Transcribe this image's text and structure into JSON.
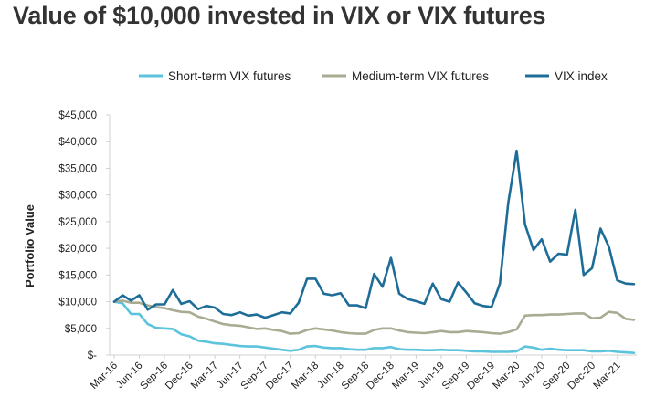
{
  "chart_data": {
    "type": "line",
    "title": "Value of $10,000 invested in VIX or VIX futures",
    "xlabel": "",
    "ylabel": "Portfolio Value",
    "ylim": [
      0,
      45000
    ],
    "yticks": [
      0,
      5000,
      10000,
      15000,
      20000,
      25000,
      30000,
      35000,
      40000,
      45000
    ],
    "ytick_labels": [
      "$-",
      "$5,000",
      "$10,000",
      "$15,000",
      "$20,000",
      "$25,000",
      "$30,000",
      "$35,000",
      "$40,000",
      "$45,000"
    ],
    "xtick_labels": [
      "Mar-16",
      "Jun-16",
      "Sep-16",
      "Dec-16",
      "Mar-17",
      "Jun-17",
      "Sep-17",
      "Dec-17",
      "Mar-18",
      "Jun-18",
      "Sep-18",
      "Dec-18",
      "Mar-19",
      "Jun-19",
      "Sep-19",
      "Dec-19",
      "Mar-20",
      "Jun-20",
      "Sep-20",
      "Dec-20",
      "Mar-21"
    ],
    "x": [
      "Mar-16",
      "Apr-16",
      "May-16",
      "Jun-16",
      "Jul-16",
      "Aug-16",
      "Sep-16",
      "Oct-16",
      "Nov-16",
      "Dec-16",
      "Jan-17",
      "Feb-17",
      "Mar-17",
      "Apr-17",
      "May-17",
      "Jun-17",
      "Jul-17",
      "Aug-17",
      "Sep-17",
      "Oct-17",
      "Nov-17",
      "Dec-17",
      "Jan-18",
      "Feb-18",
      "Mar-18",
      "Apr-18",
      "May-18",
      "Jun-18",
      "Jul-18",
      "Aug-18",
      "Sep-18",
      "Oct-18",
      "Nov-18",
      "Dec-18",
      "Jan-19",
      "Feb-19",
      "Mar-19",
      "Apr-19",
      "May-19",
      "Jun-19",
      "Jul-19",
      "Aug-19",
      "Sep-19",
      "Oct-19",
      "Nov-19",
      "Dec-19",
      "Jan-20",
      "Feb-20",
      "Mar-20",
      "Apr-20",
      "May-20",
      "Jun-20",
      "Jul-20",
      "Aug-20",
      "Sep-20",
      "Oct-20",
      "Nov-20",
      "Dec-20",
      "Jan-21",
      "Feb-21",
      "Mar-21",
      "Apr-21",
      "May-21"
    ],
    "series": [
      {
        "name": "Short-term VIX futures",
        "color": "#5bc4dc",
        "values": [
          10000,
          9700,
          7700,
          7700,
          5800,
          5100,
          5000,
          4900,
          3900,
          3500,
          2700,
          2500,
          2200,
          2100,
          1900,
          1700,
          1600,
          1600,
          1400,
          1200,
          1000,
          800,
          1000,
          1600,
          1700,
          1400,
          1300,
          1300,
          1100,
          1000,
          1000,
          1300,
          1300,
          1500,
          1100,
          1000,
          1000,
          900,
          900,
          1000,
          900,
          900,
          800,
          700,
          700,
          600,
          600,
          600,
          700,
          1600,
          1400,
          1000,
          1200,
          1000,
          900,
          900,
          900,
          700,
          700,
          800,
          600,
          500,
          400
        ]
      },
      {
        "name": "Medium-term VIX futures",
        "color": "#a9ab93",
        "values": [
          10000,
          10200,
          9800,
          9800,
          9300,
          9000,
          8800,
          8400,
          8100,
          8000,
          7200,
          6800,
          6300,
          5800,
          5600,
          5500,
          5200,
          4900,
          5000,
          4700,
          4500,
          4000,
          4100,
          4700,
          5000,
          4800,
          4600,
          4300,
          4100,
          4000,
          4000,
          4700,
          5000,
          5000,
          4600,
          4300,
          4200,
          4100,
          4300,
          4500,
          4300,
          4300,
          4500,
          4400,
          4300,
          4100,
          4000,
          4300,
          4800,
          7400,
          7500,
          7500,
          7600,
          7600,
          7700,
          7800,
          7800,
          6900,
          7000,
          8100,
          7900,
          6800,
          6600
        ]
      },
      {
        "name": "VIX index",
        "color": "#1e6d99",
        "values": [
          10000,
          11200,
          10200,
          11200,
          8500,
          9500,
          9500,
          12200,
          9600,
          10100,
          8600,
          9200,
          8900,
          7700,
          7500,
          8000,
          7400,
          7600,
          7000,
          7500,
          8000,
          7800,
          9800,
          14300,
          14300,
          11500,
          11200,
          11600,
          9300,
          9300,
          8800,
          15200,
          12800,
          18200,
          11500,
          10500,
          10100,
          9600,
          13400,
          10500,
          10000,
          13600,
          11700,
          9700,
          9200,
          9000,
          13400,
          28500,
          38300,
          24500,
          19700,
          21700,
          17500,
          19000,
          18800,
          27200,
          15000,
          16300,
          23700,
          20300,
          14000,
          13400,
          13300
        ]
      }
    ],
    "legend_position": "top",
    "grid": false
  }
}
